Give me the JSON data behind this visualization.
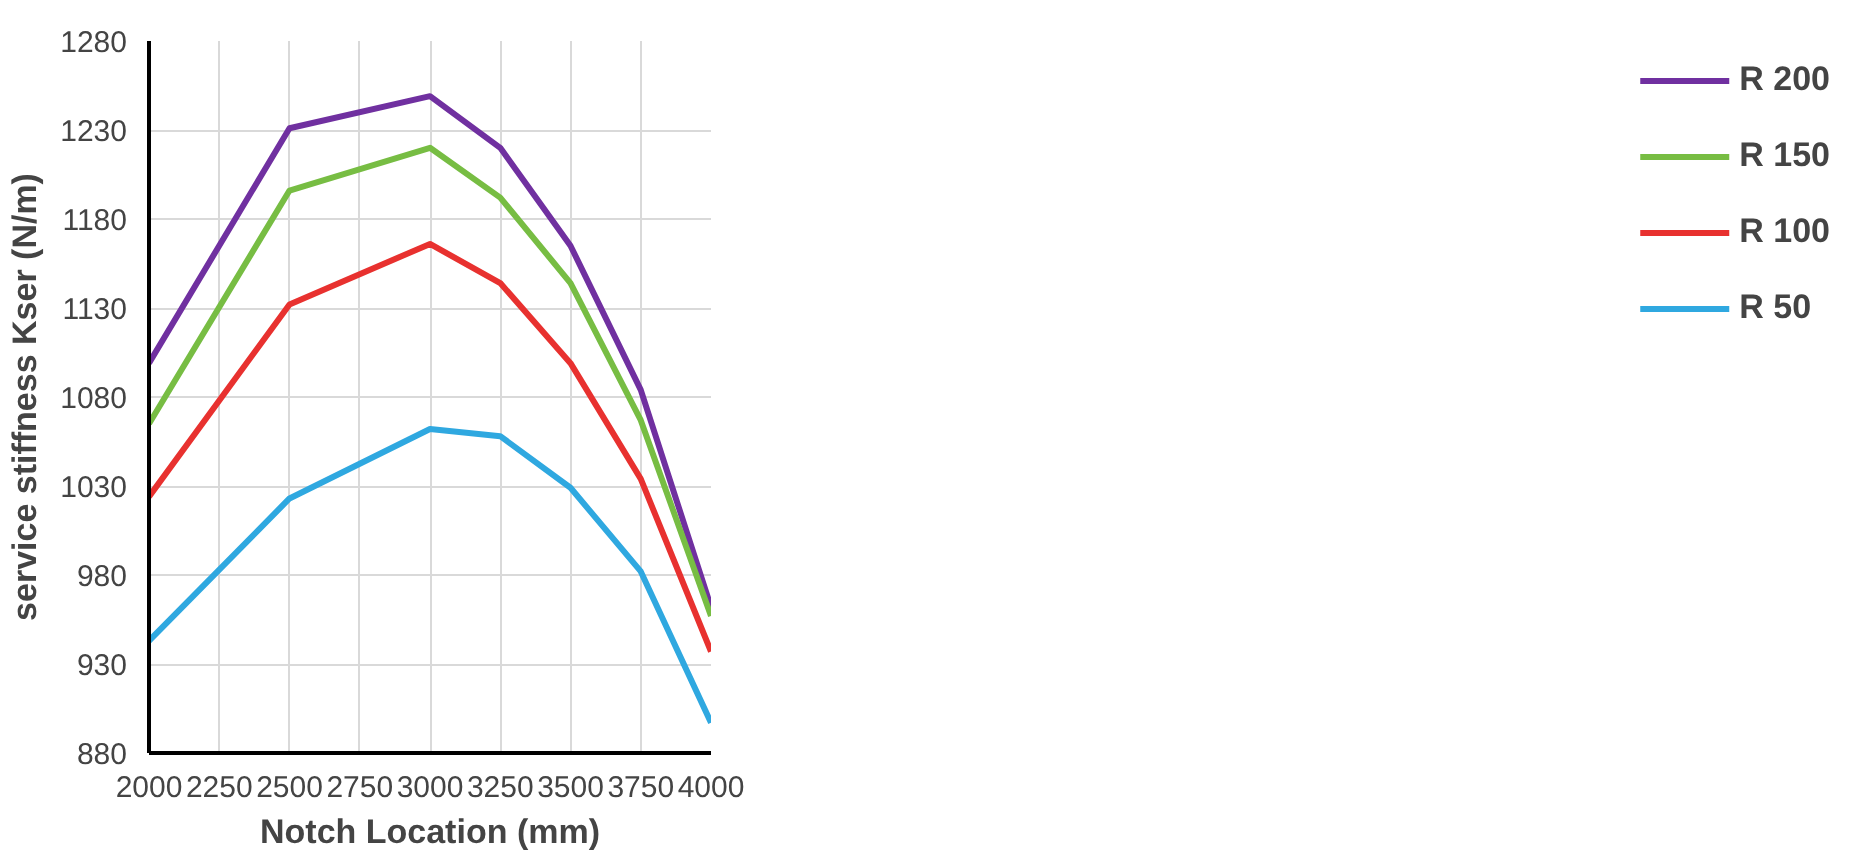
{
  "chart_data": {
    "type": "line",
    "xlabel": "Notch Location (mm)",
    "ylabel": "service stiffness Kser (N/m)",
    "x": [
      2000,
      2500,
      3000,
      3250,
      3500,
      3750,
      4000
    ],
    "xlim": [
      2000,
      4000
    ],
    "xticks": [
      2000,
      2250,
      2500,
      2750,
      3000,
      3250,
      3500,
      3750,
      4000
    ],
    "ylim": [
      880,
      1280
    ],
    "yticks": [
      880,
      930,
      980,
      1030,
      1080,
      1130,
      1180,
      1230,
      1280
    ],
    "grid": true,
    "legend": "right",
    "marker": "none",
    "line_style": "solid",
    "series": [
      {
        "name": "R 200",
        "color": "#7030a0",
        "values": [
          1099,
          1231,
          1249,
          1220,
          1165,
          1084,
          962
        ]
      },
      {
        "name": "R 150",
        "color": "#77bd43",
        "values": [
          1065,
          1196,
          1220,
          1192,
          1144,
          1067,
          957
        ]
      },
      {
        "name": "R 100",
        "color": "#e8312f",
        "values": [
          1024,
          1132,
          1166,
          1144,
          1099,
          1034,
          937
        ]
      },
      {
        "name": "R 50",
        "color": "#2fa8e0",
        "values": [
          943,
          1023,
          1062,
          1058,
          1029,
          982,
          897
        ]
      }
    ]
  }
}
